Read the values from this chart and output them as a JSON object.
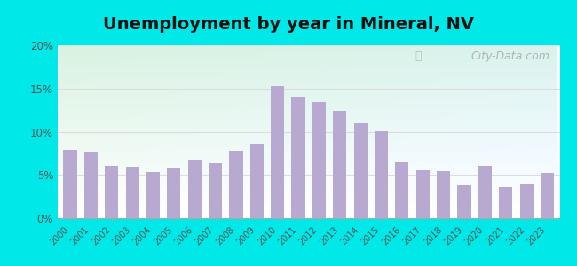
{
  "title": "Unemployment by year in Mineral, NV",
  "years": [
    2000,
    2001,
    2002,
    2003,
    2004,
    2005,
    2006,
    2007,
    2008,
    2009,
    2010,
    2011,
    2012,
    2013,
    2014,
    2015,
    2016,
    2017,
    2018,
    2019,
    2020,
    2021,
    2022,
    2023
  ],
  "values": [
    7.9,
    7.7,
    6.1,
    5.9,
    5.3,
    5.8,
    6.8,
    6.4,
    7.8,
    8.6,
    15.3,
    14.0,
    13.4,
    12.4,
    11.0,
    10.1,
    6.5,
    5.5,
    5.4,
    3.8,
    6.1,
    3.6,
    4.0,
    5.2
  ],
  "bar_color": "#b8a9d0",
  "outer_bg": "#00e8e8",
  "ylim": [
    0,
    20
  ],
  "yticks": [
    0,
    5,
    10,
    15,
    20
  ],
  "ytick_labels": [
    "0%",
    "5%",
    "10%",
    "15%",
    "20%"
  ],
  "title_fontsize": 14,
  "watermark": "City-Data.com",
  "grid_color": "#dddddd",
  "bg_left_color": "#d4edda",
  "bg_right_color": "#e8f8f0"
}
